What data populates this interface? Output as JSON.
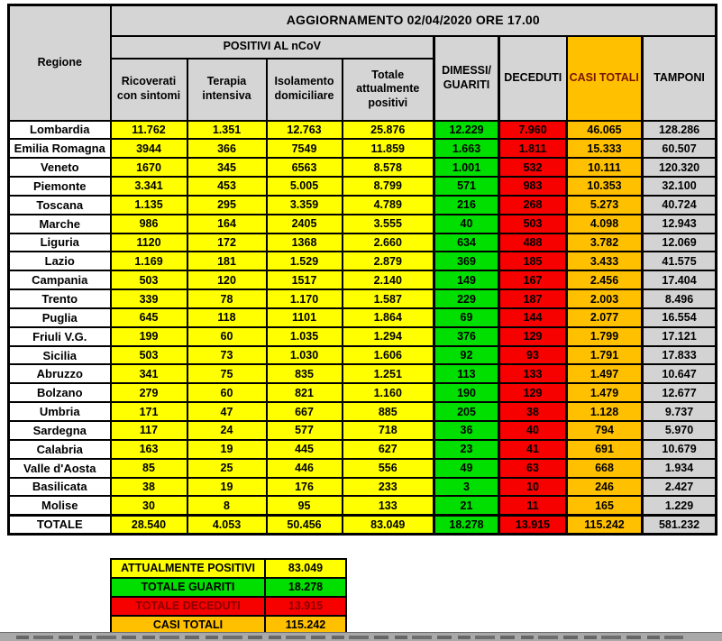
{
  "header": {
    "title": "AGGIORNAMENTO 02/04/2020 ORE 17.00",
    "region": "Regione",
    "group": "POSITIVI AL nCoV",
    "sub": [
      "Ricoverati con sintomi",
      "Terapia intensiva",
      "Isolamento domiciliare",
      "Totale attualmente positivi"
    ],
    "right": [
      "DIMESSI/ GUARITI",
      "DECEDUTI",
      "CASI TOTALI",
      "TAMPONI"
    ]
  },
  "colors": {
    "yellow": "#FFFF00",
    "green": "#00DF00",
    "red": "#F60000",
    "orange": "#FFC000",
    "header_gray": "#D5D5D5",
    "tamponi_gray": "#D3D3D3",
    "dark_red_text": "#8B0000"
  },
  "chart_data": {
    "type": "table",
    "title": "AGGIORNAMENTO 02/04/2020 ORE 17.00",
    "columns": [
      "Regione",
      "Ricoverati con sintomi",
      "Terapia intensiva",
      "Isolamento domiciliare",
      "Totale attualmente positivi",
      "DIMESSI/GUARITI",
      "DECEDUTI",
      "CASI TOTALI",
      "TAMPONI"
    ],
    "group_header": {
      "label": "POSITIVI AL nCoV",
      "spans": [
        "Ricoverati con sintomi",
        "Terapia intensiva",
        "Isolamento domiciliare",
        "Totale attualmente positivi"
      ]
    },
    "rows": [
      [
        "Lombardia",
        "11.762",
        "1.351",
        "12.763",
        "25.876",
        "12.229",
        "7.960",
        "46.065",
        "128.286"
      ],
      [
        "Emilia Romagna",
        "3944",
        "366",
        "7549",
        "11.859",
        "1.663",
        "1.811",
        "15.333",
        "60.507"
      ],
      [
        "Veneto",
        "1670",
        "345",
        "6563",
        "8.578",
        "1.001",
        "532",
        "10.111",
        "120.320"
      ],
      [
        "Piemonte",
        "3.341",
        "453",
        "5.005",
        "8.799",
        "571",
        "983",
        "10.353",
        "32.100"
      ],
      [
        "Toscana",
        "1.135",
        "295",
        "3.359",
        "4.789",
        "216",
        "268",
        "5.273",
        "40.724"
      ],
      [
        "Marche",
        "986",
        "164",
        "2405",
        "3.555",
        "40",
        "503",
        "4.098",
        "12.943"
      ],
      [
        "Liguria",
        "1120",
        "172",
        "1368",
        "2.660",
        "634",
        "488",
        "3.782",
        "12.069"
      ],
      [
        "Lazio",
        "1.169",
        "181",
        "1.529",
        "2.879",
        "369",
        "185",
        "3.433",
        "41.575"
      ],
      [
        "Campania",
        "503",
        "120",
        "1517",
        "2.140",
        "149",
        "167",
        "2.456",
        "17.404"
      ],
      [
        "Trento",
        "339",
        "78",
        "1.170",
        "1.587",
        "229",
        "187",
        "2.003",
        "8.496"
      ],
      [
        "Puglia",
        "645",
        "118",
        "1101",
        "1.864",
        "69",
        "144",
        "2.077",
        "16.554"
      ],
      [
        "Friuli V.G.",
        "199",
        "60",
        "1.035",
        "1.294",
        "376",
        "129",
        "1.799",
        "17.121"
      ],
      [
        "Sicilia",
        "503",
        "73",
        "1.030",
        "1.606",
        "92",
        "93",
        "1.791",
        "17.833"
      ],
      [
        "Abruzzo",
        "341",
        "75",
        "835",
        "1.251",
        "113",
        "133",
        "1.497",
        "10.647"
      ],
      [
        "Bolzano",
        "279",
        "60",
        "821",
        "1.160",
        "190",
        "129",
        "1.479",
        "12.677"
      ],
      [
        "Umbria",
        "171",
        "47",
        "667",
        "885",
        "205",
        "38",
        "1.128",
        "9.737"
      ],
      [
        "Sardegna",
        "117",
        "24",
        "577",
        "718",
        "36",
        "40",
        "794",
        "5.970"
      ],
      [
        "Calabria",
        "163",
        "19",
        "445",
        "627",
        "23",
        "41",
        "691",
        "10.679"
      ],
      [
        "Valle d'Aosta",
        "85",
        "25",
        "446",
        "556",
        "49",
        "63",
        "668",
        "1.934"
      ],
      [
        "Basilicata",
        "38",
        "19",
        "176",
        "233",
        "3",
        "10",
        "246",
        "2.427"
      ],
      [
        "Molise",
        "30",
        "8",
        "95",
        "133",
        "21",
        "11",
        "165",
        "1.229"
      ]
    ],
    "total_row": [
      "TOTALE",
      "28.540",
      "4.053",
      "50.456",
      "83.049",
      "18.278",
      "13.915",
      "115.242",
      "581.232"
    ],
    "legend": [
      {
        "label": "ATTUALMENTE POSITIVI",
        "value": "83.049",
        "color": "yellow"
      },
      {
        "label": "TOTALE GUARITI",
        "value": "18.278",
        "color": "green"
      },
      {
        "label": "TOTALE DECEDUTI",
        "value": "13.915",
        "color": "red"
      },
      {
        "label": "CASI TOTALI",
        "value": "115.242",
        "color": "orange"
      }
    ]
  }
}
